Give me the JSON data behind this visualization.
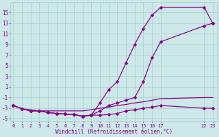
{
  "xlabel": "Windchill (Refroidissement éolien,°C)",
  "bg_color": "#cce8e8",
  "line_color": "#880088",
  "grid_color": "#aacccc",
  "x_ticks": [
    0,
    1,
    2,
    3,
    4,
    5,
    6,
    7,
    8,
    9,
    10,
    11,
    12,
    13,
    14,
    15,
    16,
    17,
    22,
    23
  ],
  "x_tick_labels": [
    "0",
    "1",
    "2",
    "3",
    "4",
    "5",
    "6",
    "7",
    "8",
    "9",
    "10",
    "11",
    "12",
    "13",
    "14",
    "15",
    "16",
    "17",
    "22",
    "23"
  ],
  "ylim": [
    -5.5,
    17.0
  ],
  "xlim": [
    -0.3,
    23.5
  ],
  "y_ticks": [
    -5,
    -3,
    -1,
    1,
    3,
    5,
    7,
    9,
    11,
    13,
    15
  ],
  "line1_x": [
    0,
    1,
    2,
    3,
    4,
    5,
    6,
    7,
    8,
    9,
    10,
    11,
    12,
    13,
    14,
    15,
    16,
    17,
    22,
    23
  ],
  "line1_y": [
    -2.5,
    -3.1,
    -3.5,
    -3.5,
    -3.8,
    -4.0,
    -4.1,
    -4.2,
    -4.5,
    -4.3,
    -2.0,
    0.5,
    2.0,
    5.5,
    9.0,
    12.0,
    14.5,
    16.0,
    16.0,
    13.0
  ],
  "line2_x": [
    0,
    1,
    2,
    3,
    4,
    5,
    6,
    7,
    8,
    9,
    10,
    11,
    12,
    13,
    14,
    15,
    16,
    17,
    22,
    23
  ],
  "line2_y": [
    -2.5,
    -3.1,
    -3.5,
    -3.5,
    -3.8,
    -4.0,
    -4.1,
    -4.2,
    -4.5,
    -4.3,
    -3.5,
    -2.5,
    -2.0,
    -1.5,
    -1.0,
    2.0,
    6.5,
    9.5,
    12.5,
    13.0
  ],
  "line3_x": [
    0,
    1,
    2,
    3,
    4,
    5,
    6,
    7,
    8,
    9,
    10,
    11,
    12,
    13,
    14,
    15,
    16,
    17,
    22,
    23
  ],
  "line3_y": [
    -2.5,
    -3.1,
    -3.5,
    -3.5,
    -3.8,
    -4.0,
    -4.1,
    -4.2,
    -4.5,
    -4.3,
    -4.3,
    -4.2,
    -4.0,
    -3.5,
    -3.3,
    -3.0,
    -2.8,
    -2.5,
    -3.0,
    -3.0
  ],
  "line4_x": [
    0,
    1,
    2,
    3,
    4,
    5,
    6,
    7,
    8,
    9,
    10,
    11,
    12,
    13,
    14,
    15,
    16,
    17,
    22,
    23
  ],
  "line4_y": [
    -2.5,
    -3.1,
    -3.3,
    -3.5,
    -3.5,
    -3.5,
    -3.5,
    -3.5,
    -3.5,
    -3.3,
    -3.0,
    -2.8,
    -2.5,
    -2.3,
    -2.0,
    -1.8,
    -1.5,
    -1.2,
    -1.0,
    -1.0
  ]
}
